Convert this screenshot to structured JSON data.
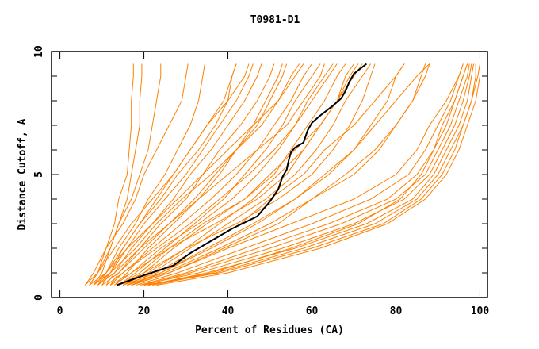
{
  "chart_data": {
    "type": "line",
    "title": "T0981-D1",
    "xlabel": "Percent of Residues (CA)",
    "ylabel": "Distance Cutoff, A",
    "xlim": [
      -2,
      101.8
    ],
    "ylim": [
      0,
      10
    ],
    "xticks": [
      0,
      20,
      40,
      60,
      80,
      100
    ],
    "yticks": [
      0,
      5,
      10
    ],
    "grid": false,
    "colors": {
      "models": "#ff8000",
      "highlight": "#000000"
    },
    "y_levels": [
      0.5,
      1,
      2,
      3,
      4,
      5,
      6,
      7,
      8,
      9,
      9.5
    ],
    "series": [
      [
        6,
        8,
        11,
        13,
        14,
        16,
        16.5,
        17,
        17,
        17.5,
        17.5
      ],
      [
        7,
        9,
        12,
        14,
        16,
        17,
        18,
        19,
        19,
        19.5,
        19.5
      ],
      [
        8,
        10,
        12,
        14,
        17,
        19,
        21,
        22,
        23,
        24,
        24
      ],
      [
        7,
        9,
        11,
        15,
        18,
        20,
        23,
        26,
        29,
        30,
        30.5
      ],
      [
        9,
        11,
        14,
        18,
        21,
        25,
        28,
        31,
        33,
        34,
        34.5
      ],
      [
        10,
        12,
        15,
        19,
        23,
        27,
        31,
        35,
        40,
        41,
        42
      ],
      [
        11,
        13,
        17,
        22,
        27,
        31,
        36,
        40,
        44,
        47,
        48
      ],
      [
        8,
        12,
        16,
        20,
        25,
        30,
        34,
        38,
        42,
        45,
        46
      ],
      [
        12,
        14,
        19,
        24,
        30,
        34,
        38,
        43,
        47,
        50,
        51
      ],
      [
        13,
        16,
        21,
        27,
        33,
        38,
        42,
        46,
        49,
        52,
        53
      ],
      [
        10,
        14,
        20,
        26,
        32,
        37,
        42,
        47,
        50,
        53,
        54
      ],
      [
        12,
        15,
        22,
        29,
        36,
        42,
        47,
        51,
        55,
        58,
        60
      ],
      [
        14,
        18,
        25,
        32,
        39,
        44,
        49,
        53,
        56,
        60,
        62
      ],
      [
        13,
        17,
        24,
        33,
        41,
        47,
        52,
        56,
        59,
        63,
        65
      ],
      [
        15,
        20,
        27,
        35,
        44,
        51,
        55,
        59,
        63,
        66,
        68
      ],
      [
        14,
        19,
        26,
        37,
        47,
        54,
        58,
        62,
        66,
        69,
        71
      ],
      [
        16,
        22,
        31,
        40,
        49,
        56,
        61,
        65,
        68,
        72,
        74
      ],
      [
        15,
        21,
        30,
        42,
        52,
        60,
        65,
        69,
        72,
        74,
        75
      ],
      [
        17,
        24,
        35,
        46,
        56,
        63,
        70,
        74,
        78,
        80,
        82
      ],
      [
        16,
        25,
        38,
        50,
        60,
        70,
        76,
        80,
        84,
        86,
        87
      ],
      [
        17,
        26,
        40,
        55,
        70,
        80,
        85,
        88,
        92,
        95,
        96
      ],
      [
        18,
        28,
        44,
        60,
        74,
        83,
        87,
        90,
        93,
        95,
        96
      ],
      [
        19,
        30,
        47,
        64,
        78,
        85,
        89,
        92,
        94,
        96,
        97
      ],
      [
        20,
        31,
        50,
        67,
        80,
        87,
        90,
        93,
        95,
        97,
        97.5
      ],
      [
        19,
        33,
        53,
        70,
        82,
        88,
        91,
        94,
        96,
        97.5,
        98
      ],
      [
        21,
        35,
        56,
        73,
        84,
        89,
        92,
        95,
        97,
        98,
        98.5
      ],
      [
        22,
        37,
        58,
        75,
        85,
        90,
        93,
        96,
        98,
        99,
        99
      ],
      [
        20,
        38,
        60,
        77,
        86,
        91,
        94,
        96,
        98,
        99.5,
        100
      ],
      [
        23,
        40,
        62,
        78,
        87,
        92,
        95,
        97,
        99,
        100,
        100
      ],
      [
        21,
        36,
        55,
        71,
        81,
        86,
        89,
        91,
        94,
        96,
        97
      ],
      [
        14,
        20,
        30,
        38,
        46,
        52,
        58,
        62,
        66,
        70,
        72
      ],
      [
        15,
        23,
        33,
        43,
        50,
        58,
        63,
        70,
        75,
        80,
        82
      ],
      [
        16,
        24,
        36,
        47,
        56,
        64,
        70,
        75,
        80,
        85,
        88
      ],
      [
        17,
        26,
        39,
        52,
        60,
        68,
        75,
        80,
        84,
        87,
        88
      ],
      [
        12,
        17,
        26,
        34,
        44,
        50,
        56,
        62,
        66,
        68,
        70
      ],
      [
        11,
        15,
        23,
        31,
        38,
        45,
        51,
        56,
        60,
        64,
        66
      ],
      [
        9,
        13,
        19,
        26,
        33,
        40,
        47,
        54,
        58,
        62,
        63
      ],
      [
        7,
        11,
        16,
        22,
        28,
        34,
        40,
        46,
        52,
        56,
        58
      ],
      [
        9,
        12,
        18,
        23,
        29,
        36,
        42,
        48,
        52,
        55,
        57
      ],
      [
        6,
        9,
        13,
        17,
        22,
        27,
        31,
        35,
        39,
        41,
        42
      ],
      [
        8,
        11,
        15,
        19,
        24,
        28,
        33,
        37,
        40,
        44,
        45
      ]
    ],
    "highlight": {
      "x": [
        13.5,
        20,
        27,
        31,
        35,
        41,
        47,
        50,
        52,
        53,
        54,
        54.5,
        55,
        56,
        58,
        59,
        60,
        62,
        65,
        67,
        68,
        69,
        70,
        73
      ],
      "y": [
        0.5,
        0.9,
        1.3,
        1.8,
        2.2,
        2.8,
        3.3,
        3.9,
        4.4,
        4.9,
        5.2,
        5.6,
        5.9,
        6.1,
        6.3,
        6.8,
        7.1,
        7.4,
        7.8,
        8.1,
        8.4,
        8.8,
        9.1,
        9.5
      ]
    }
  }
}
